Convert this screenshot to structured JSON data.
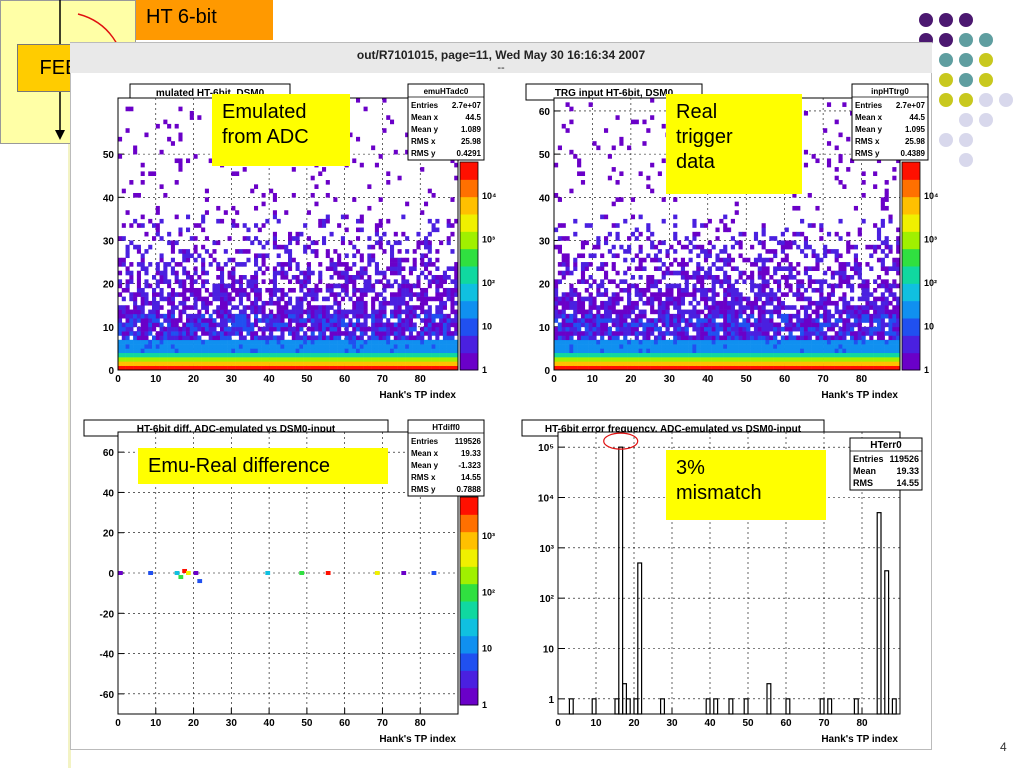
{
  "slide": {
    "title": "HT 6-bit",
    "fee_label": "FEE",
    "page_number": "4"
  },
  "canvas": {
    "title": "out/R7101015, page=11,  Wed May 30 16:16:34 2007",
    "subtitle": "--"
  },
  "callouts": {
    "emulated": [
      "Emulated",
      "from ADC"
    ],
    "real": [
      "Real",
      "trigger",
      "data"
    ],
    "diff": "Emu-Real difference",
    "mismatch": [
      "3%",
      "mismatch"
    ]
  },
  "colors": {
    "fee_panel": "#ffffa6",
    "fee_box": "#ffcc00",
    "title_tag": "#ff9900",
    "callout": "#ffff00",
    "dot_purple": "#4b1870",
    "dot_teal": "#5f9ea0",
    "dot_olive": "#c8c81e",
    "dot_lilac": "#d8d8ec",
    "arrow_red": "#e01010"
  },
  "chart_data": [
    {
      "id": "emu",
      "type": "heatmap",
      "title": "mulated HT-6bit, DSM0",
      "xlabel": "Hank's TP index",
      "ylabel": "",
      "xlim": [
        0,
        90
      ],
      "ylim": [
        0,
        63
      ],
      "xticks": [
        0,
        10,
        20,
        30,
        40,
        50,
        60,
        70,
        80
      ],
      "yticks": [
        0,
        10,
        20,
        30,
        40,
        50
      ],
      "zscale": "log",
      "zticks": [
        "1",
        "10",
        "10²",
        "10³",
        "10⁴"
      ],
      "grid": true,
      "stats": {
        "name": "emuHTadc0",
        "rows": [
          [
            "Entries",
            "2.7e+07"
          ],
          [
            "Mean x",
            "44.5"
          ],
          [
            "Mean y",
            "1.089"
          ],
          [
            "RMS x",
            "25.98"
          ],
          [
            "RMS y",
            "0.4291"
          ]
        ]
      },
      "description_profile": {
        "dense_band_y": [
          0,
          35
        ],
        "sparse_up_to_y": 63
      }
    },
    {
      "id": "trg",
      "type": "heatmap",
      "title": "TRG input HT-6bit, DSM0",
      "xlabel": "Hank's TP index",
      "ylabel": "",
      "xlim": [
        0,
        90
      ],
      "ylim": [
        0,
        63
      ],
      "xticks": [
        0,
        10,
        20,
        30,
        40,
        50,
        60,
        70,
        80
      ],
      "yticks": [
        0,
        10,
        20,
        30,
        40,
        50,
        60
      ],
      "zscale": "log",
      "zticks": [
        "1",
        "10",
        "10²",
        "10³",
        "10⁴"
      ],
      "grid": true,
      "stats": {
        "name": "inpHTtrg0",
        "rows": [
          [
            "Entries",
            "2.7e+07"
          ],
          [
            "Mean x",
            "44.5"
          ],
          [
            "Mean y",
            "1.095"
          ],
          [
            "RMS x",
            "25.98"
          ],
          [
            "RMS y",
            "0.4389"
          ]
        ]
      },
      "description_profile": {
        "dense_band_y": [
          0,
          35
        ],
        "sparse_up_to_y": 63
      }
    },
    {
      "id": "diff",
      "type": "heatmap",
      "title": "HT-6bit diff, ADC-emulated vs DSM0-input",
      "xlabel": "Hank's TP index",
      "ylabel": "",
      "xlim": [
        0,
        90
      ],
      "ylim": [
        -70,
        70
      ],
      "xticks": [
        0,
        10,
        20,
        30,
        40,
        50,
        60,
        70,
        80
      ],
      "yticks": [
        -60,
        -40,
        -20,
        0,
        20,
        40,
        60
      ],
      "zscale": "log",
      "zticks": [
        "1",
        "10",
        "10²",
        "10³"
      ],
      "grid": true,
      "stats": {
        "name": "HTdiff0",
        "rows": [
          [
            "Entries",
            "119526"
          ],
          [
            "Mean x",
            "19.33"
          ],
          [
            "Mean y",
            "-1.323"
          ],
          [
            "RMS x",
            "14.55"
          ],
          [
            "RMS y",
            "0.7888"
          ]
        ]
      },
      "points": [
        [
          0,
          0
        ],
        [
          8,
          0
        ],
        [
          15,
          0
        ],
        [
          16,
          -2
        ],
        [
          17,
          1
        ],
        [
          18,
          0
        ],
        [
          20,
          0
        ],
        [
          21,
          -4
        ],
        [
          39,
          0
        ],
        [
          48,
          0
        ],
        [
          55,
          0
        ],
        [
          68,
          0
        ],
        [
          75,
          0
        ],
        [
          83,
          0
        ]
      ]
    },
    {
      "id": "err",
      "type": "bar",
      "title": "HT-6bit error frequency, ADC-emulated vs DSM0-input",
      "xlabel": "Hank's TP index",
      "ylabel": "",
      "xlim": [
        0,
        90
      ],
      "yscale": "log",
      "ylim": [
        0.5,
        200000
      ],
      "xticks": [
        0,
        10,
        20,
        30,
        40,
        50,
        60,
        70,
        80
      ],
      "yticks": [
        "1",
        "10",
        "10²",
        "10³",
        "10⁴",
        "10⁵"
      ],
      "grid": true,
      "stats": {
        "name": "HTerr0",
        "rows": [
          [
            "Entries",
            "119526"
          ],
          [
            "Mean",
            "19.33"
          ],
          [
            "RMS",
            "14.55"
          ]
        ]
      },
      "bins": [
        [
          3,
          1
        ],
        [
          9,
          1
        ],
        [
          15,
          1
        ],
        [
          16,
          100000
        ],
        [
          17,
          2
        ],
        [
          18,
          1
        ],
        [
          20,
          1
        ],
        [
          21,
          500
        ],
        [
          27,
          1
        ],
        [
          39,
          1
        ],
        [
          41,
          1
        ],
        [
          45,
          1
        ],
        [
          49,
          1
        ],
        [
          55,
          2
        ],
        [
          60,
          1
        ],
        [
          69,
          1
        ],
        [
          71,
          1
        ],
        [
          78,
          1
        ],
        [
          84,
          5000
        ],
        [
          86,
          350
        ],
        [
          88,
          1
        ]
      ]
    }
  ]
}
